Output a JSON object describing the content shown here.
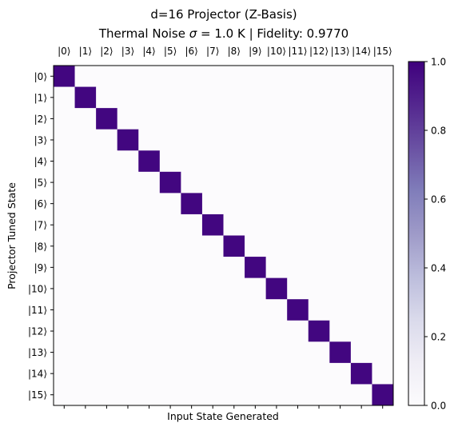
{
  "chart_data": {
    "type": "heatmap",
    "title_line1": "d=16 Projector (Z-Basis)",
    "title_line2_prefix": "Thermal Noise ",
    "title_line2_sigma": "σ",
    "title_line2_suffix": " = 1.0 K | Fidelity: 0.9770",
    "xlabel": "Input State Generated",
    "ylabel": "Projector Tuned State",
    "x_tick_labels": [
      "|0⟩",
      "|1⟩",
      "|2⟩",
      "|3⟩",
      "|4⟩",
      "|5⟩",
      "|6⟩",
      "|7⟩",
      "|8⟩",
      "|9⟩",
      "|10⟩",
      "|11⟩",
      "|12⟩",
      "|13⟩",
      "|14⟩",
      "|15⟩"
    ],
    "y_tick_labels": [
      "|0⟩",
      "|1⟩",
      "|2⟩",
      "|3⟩",
      "|4⟩",
      "|5⟩",
      "|6⟩",
      "|7⟩",
      "|8⟩",
      "|9⟩",
      "|10⟩",
      "|11⟩",
      "|12⟩",
      "|13⟩",
      "|14⟩",
      "|15⟩"
    ],
    "diagonal_values": [
      0.98,
      0.98,
      0.98,
      0.98,
      0.98,
      0.98,
      0.98,
      0.98,
      0.98,
      0.98,
      0.98,
      0.98,
      0.98,
      0.98,
      0.98,
      0.98
    ],
    "off_diagonal_value": 0.002,
    "colorbar_ticks": [
      "0.0",
      "0.2",
      "0.4",
      "0.6",
      "0.8",
      "1.0"
    ],
    "colorbar_range": [
      0,
      1
    ],
    "colormap": "Purples",
    "colormap_low": "#fcfbfd",
    "colormap_high": "#3f007d"
  }
}
